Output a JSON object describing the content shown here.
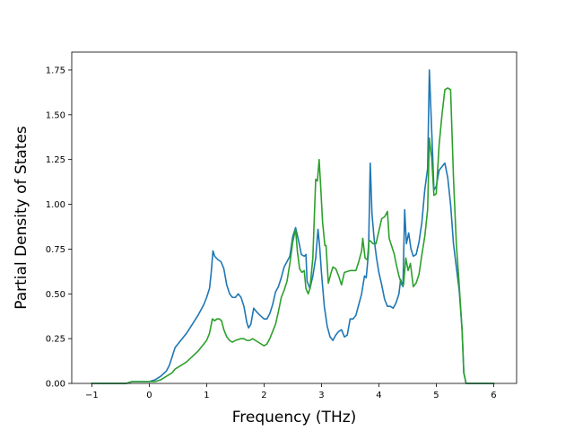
{
  "chart_data": {
    "type": "line",
    "title": "",
    "xlabel": "Frequency (THz)",
    "ylabel": "Partial Density of States",
    "xlim": [
      -1.35,
      6.4
    ],
    "ylim": [
      0,
      1.85
    ],
    "xticks": [
      -1,
      0,
      1,
      2,
      3,
      4,
      5,
      6
    ],
    "yticks": [
      0.0,
      0.25,
      0.5,
      0.75,
      1.0,
      1.25,
      1.5,
      1.75
    ],
    "xtick_labels": [
      "−1",
      "0",
      "1",
      "2",
      "3",
      "4",
      "5",
      "6"
    ],
    "ytick_labels": [
      "0.00",
      "0.25",
      "0.50",
      "0.75",
      "1.00",
      "1.25",
      "1.50",
      "1.75"
    ],
    "grid": false,
    "legend": false,
    "series": [
      {
        "color": "#1f77b4",
        "points": [
          [
            -1.0,
            0.0
          ],
          [
            -0.6,
            0.0
          ],
          [
            -0.4,
            0.0
          ],
          [
            -0.3,
            0.01
          ],
          [
            -0.2,
            0.01
          ],
          [
            0.0,
            0.01
          ],
          [
            0.1,
            0.02
          ],
          [
            0.2,
            0.04
          ],
          [
            0.3,
            0.07
          ],
          [
            0.35,
            0.1
          ],
          [
            0.4,
            0.15
          ],
          [
            0.45,
            0.2
          ],
          [
            0.55,
            0.24
          ],
          [
            0.65,
            0.28
          ],
          [
            0.75,
            0.33
          ],
          [
            0.85,
            0.38
          ],
          [
            0.95,
            0.44
          ],
          [
            1.0,
            0.48
          ],
          [
            1.05,
            0.53
          ],
          [
            1.08,
            0.62
          ],
          [
            1.11,
            0.74
          ],
          [
            1.14,
            0.71
          ],
          [
            1.2,
            0.69
          ],
          [
            1.25,
            0.68
          ],
          [
            1.3,
            0.64
          ],
          [
            1.35,
            0.55
          ],
          [
            1.4,
            0.5
          ],
          [
            1.45,
            0.48
          ],
          [
            1.5,
            0.48
          ],
          [
            1.55,
            0.5
          ],
          [
            1.6,
            0.48
          ],
          [
            1.65,
            0.43
          ],
          [
            1.7,
            0.34
          ],
          [
            1.73,
            0.31
          ],
          [
            1.77,
            0.33
          ],
          [
            1.82,
            0.42
          ],
          [
            1.87,
            0.4
          ],
          [
            1.93,
            0.38
          ],
          [
            2.0,
            0.36
          ],
          [
            2.05,
            0.36
          ],
          [
            2.1,
            0.39
          ],
          [
            2.15,
            0.44
          ],
          [
            2.2,
            0.51
          ],
          [
            2.25,
            0.54
          ],
          [
            2.3,
            0.59
          ],
          [
            2.35,
            0.65
          ],
          [
            2.4,
            0.68
          ],
          [
            2.45,
            0.71
          ],
          [
            2.5,
            0.82
          ],
          [
            2.55,
            0.87
          ],
          [
            2.6,
            0.8
          ],
          [
            2.65,
            0.72
          ],
          [
            2.7,
            0.71
          ],
          [
            2.73,
            0.72
          ],
          [
            2.75,
            0.57
          ],
          [
            2.8,
            0.53
          ],
          [
            2.85,
            0.6
          ],
          [
            2.9,
            0.7
          ],
          [
            2.94,
            0.86
          ],
          [
            2.97,
            0.76
          ],
          [
            3.0,
            0.62
          ],
          [
            3.05,
            0.43
          ],
          [
            3.1,
            0.32
          ],
          [
            3.15,
            0.26
          ],
          [
            3.2,
            0.24
          ],
          [
            3.25,
            0.27
          ],
          [
            3.3,
            0.29
          ],
          [
            3.35,
            0.3
          ],
          [
            3.4,
            0.26
          ],
          [
            3.45,
            0.27
          ],
          [
            3.5,
            0.36
          ],
          [
            3.55,
            0.36
          ],
          [
            3.6,
            0.38
          ],
          [
            3.65,
            0.44
          ],
          [
            3.7,
            0.5
          ],
          [
            3.75,
            0.6
          ],
          [
            3.78,
            0.59
          ],
          [
            3.82,
            0.73
          ],
          [
            3.85,
            1.23
          ],
          [
            3.88,
            0.95
          ],
          [
            3.92,
            0.8
          ],
          [
            3.96,
            0.7
          ],
          [
            4.0,
            0.62
          ],
          [
            4.05,
            0.55
          ],
          [
            4.1,
            0.47
          ],
          [
            4.15,
            0.43
          ],
          [
            4.2,
            0.43
          ],
          [
            4.25,
            0.42
          ],
          [
            4.3,
            0.45
          ],
          [
            4.35,
            0.5
          ],
          [
            4.38,
            0.58
          ],
          [
            4.42,
            0.54
          ],
          [
            4.45,
            0.97
          ],
          [
            4.48,
            0.78
          ],
          [
            4.52,
            0.84
          ],
          [
            4.56,
            0.75
          ],
          [
            4.6,
            0.71
          ],
          [
            4.65,
            0.72
          ],
          [
            4.7,
            0.79
          ],
          [
            4.75,
            0.9
          ],
          [
            4.8,
            1.08
          ],
          [
            4.85,
            1.2
          ],
          [
            4.88,
            1.75
          ],
          [
            4.92,
            1.42
          ],
          [
            4.96,
            1.08
          ],
          [
            5.0,
            1.1
          ],
          [
            5.05,
            1.19
          ],
          [
            5.1,
            1.21
          ],
          [
            5.15,
            1.23
          ],
          [
            5.2,
            1.15
          ],
          [
            5.25,
            1.0
          ],
          [
            5.3,
            0.78
          ],
          [
            5.35,
            0.65
          ],
          [
            5.4,
            0.52
          ],
          [
            5.45,
            0.3
          ],
          [
            5.48,
            0.06
          ],
          [
            5.52,
            0.0
          ],
          [
            6.0,
            0.0
          ]
        ]
      },
      {
        "color": "#2ca02c",
        "points": [
          [
            -1.0,
            0.0
          ],
          [
            -0.6,
            0.0
          ],
          [
            -0.4,
            0.0
          ],
          [
            -0.3,
            0.01
          ],
          [
            -0.2,
            0.01
          ],
          [
            0.0,
            0.01
          ],
          [
            0.1,
            0.01
          ],
          [
            0.2,
            0.02
          ],
          [
            0.3,
            0.04
          ],
          [
            0.4,
            0.06
          ],
          [
            0.45,
            0.08
          ],
          [
            0.55,
            0.1
          ],
          [
            0.65,
            0.12
          ],
          [
            0.75,
            0.15
          ],
          [
            0.85,
            0.18
          ],
          [
            0.95,
            0.22
          ],
          [
            1.0,
            0.24
          ],
          [
            1.05,
            0.28
          ],
          [
            1.1,
            0.36
          ],
          [
            1.14,
            0.35
          ],
          [
            1.18,
            0.36
          ],
          [
            1.22,
            0.36
          ],
          [
            1.26,
            0.35
          ],
          [
            1.3,
            0.3
          ],
          [
            1.35,
            0.26
          ],
          [
            1.4,
            0.24
          ],
          [
            1.45,
            0.23
          ],
          [
            1.5,
            0.24
          ],
          [
            1.6,
            0.25
          ],
          [
            1.65,
            0.25
          ],
          [
            1.7,
            0.24
          ],
          [
            1.75,
            0.24
          ],
          [
            1.8,
            0.25
          ],
          [
            1.85,
            0.24
          ],
          [
            1.9,
            0.23
          ],
          [
            1.95,
            0.22
          ],
          [
            2.0,
            0.21
          ],
          [
            2.05,
            0.22
          ],
          [
            2.1,
            0.25
          ],
          [
            2.15,
            0.29
          ],
          [
            2.2,
            0.33
          ],
          [
            2.25,
            0.4
          ],
          [
            2.3,
            0.48
          ],
          [
            2.35,
            0.52
          ],
          [
            2.4,
            0.57
          ],
          [
            2.45,
            0.67
          ],
          [
            2.5,
            0.79
          ],
          [
            2.55,
            0.86
          ],
          [
            2.58,
            0.74
          ],
          [
            2.62,
            0.64
          ],
          [
            2.66,
            0.62
          ],
          [
            2.7,
            0.63
          ],
          [
            2.73,
            0.53
          ],
          [
            2.77,
            0.5
          ],
          [
            2.8,
            0.53
          ],
          [
            2.85,
            0.7
          ],
          [
            2.9,
            1.14
          ],
          [
            2.93,
            1.13
          ],
          [
            2.96,
            1.25
          ],
          [
            2.99,
            1.08
          ],
          [
            3.02,
            0.9
          ],
          [
            3.06,
            0.77
          ],
          [
            3.08,
            0.77
          ],
          [
            3.12,
            0.56
          ],
          [
            3.17,
            0.62
          ],
          [
            3.2,
            0.65
          ],
          [
            3.25,
            0.64
          ],
          [
            3.3,
            0.6
          ],
          [
            3.35,
            0.55
          ],
          [
            3.4,
            0.62
          ],
          [
            3.5,
            0.63
          ],
          [
            3.6,
            0.63
          ],
          [
            3.65,
            0.68
          ],
          [
            3.7,
            0.74
          ],
          [
            3.72,
            0.81
          ],
          [
            3.76,
            0.7
          ],
          [
            3.8,
            0.69
          ],
          [
            3.83,
            0.8
          ],
          [
            3.87,
            0.79
          ],
          [
            3.9,
            0.78
          ],
          [
            3.95,
            0.78
          ],
          [
            4.0,
            0.85
          ],
          [
            4.05,
            0.92
          ],
          [
            4.1,
            0.93
          ],
          [
            4.15,
            0.96
          ],
          [
            4.18,
            0.81
          ],
          [
            4.22,
            0.77
          ],
          [
            4.27,
            0.72
          ],
          [
            4.3,
            0.67
          ],
          [
            4.35,
            0.6
          ],
          [
            4.4,
            0.55
          ],
          [
            4.43,
            0.55
          ],
          [
            4.47,
            0.7
          ],
          [
            4.51,
            0.63
          ],
          [
            4.55,
            0.67
          ],
          [
            4.6,
            0.54
          ],
          [
            4.65,
            0.56
          ],
          [
            4.7,
            0.61
          ],
          [
            4.75,
            0.72
          ],
          [
            4.8,
            0.82
          ],
          [
            4.85,
            0.97
          ],
          [
            4.88,
            1.37
          ],
          [
            4.92,
            1.26
          ],
          [
            4.96,
            1.05
          ],
          [
            5.0,
            1.06
          ],
          [
            5.05,
            1.33
          ],
          [
            5.1,
            1.5
          ],
          [
            5.15,
            1.64
          ],
          [
            5.2,
            1.65
          ],
          [
            5.25,
            1.64
          ],
          [
            5.3,
            1.15
          ],
          [
            5.35,
            0.78
          ],
          [
            5.4,
            0.55
          ],
          [
            5.45,
            0.3
          ],
          [
            5.48,
            0.06
          ],
          [
            5.52,
            0.0
          ],
          [
            6.0,
            0.0
          ]
        ]
      }
    ]
  }
}
